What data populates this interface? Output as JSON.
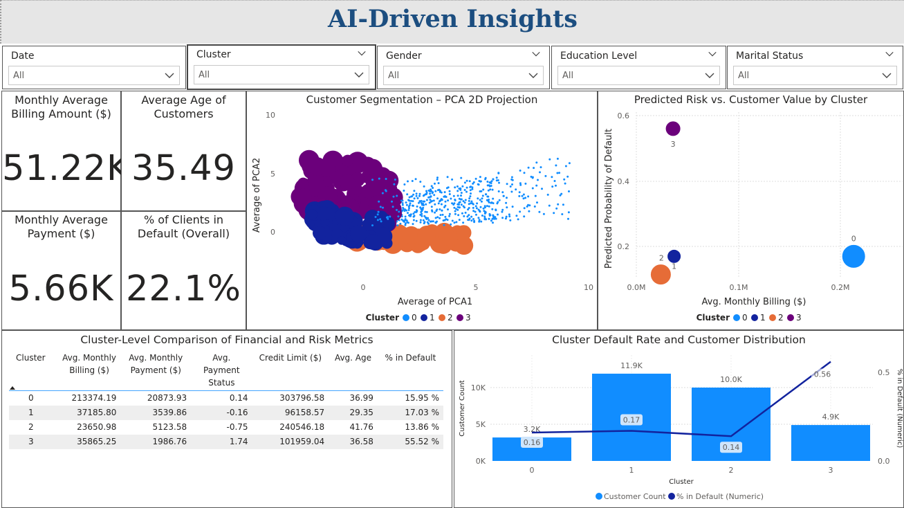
{
  "header": {
    "title": "AI-Driven Insights"
  },
  "slicers": [
    {
      "label": "Date",
      "value": "All"
    },
    {
      "label": "Cluster",
      "value": "All"
    },
    {
      "label": "Gender",
      "value": "All"
    },
    {
      "label": "Education Level",
      "value": "All"
    },
    {
      "label": "Marital Status",
      "value": "All"
    }
  ],
  "kpis": {
    "billing": {
      "label": "Monthly Average Billing Amount ($)",
      "value": "51.22K"
    },
    "age": {
      "label": "Average Age of Customers",
      "value": "35.49"
    },
    "payment": {
      "label": "Monthly Average Payment ($)",
      "value": "5.66K"
    },
    "default": {
      "label": "% of Clients in Default (Overall)",
      "value": "22.1%"
    }
  },
  "legend": {
    "title": "Cluster",
    "items": [
      "0",
      "1",
      "2",
      "3"
    ]
  },
  "colors": {
    "c0": "#118dff",
    "c1": "#12239e",
    "c2": "#e66c37",
    "c3": "#6b007b",
    "accent": "#41a4ff",
    "title": "#1c4e80"
  },
  "chart_data": [
    {
      "type": "scatter",
      "title": "Customer Segmentation – PCA 2D Projection",
      "xlabel": "Average of PCA1",
      "ylabel": "Average of PCA2",
      "xticks": [
        "0",
        "5",
        "10"
      ],
      "yticks": [
        "10",
        "5",
        "0"
      ],
      "xlim": [
        -3,
        10
      ],
      "ylim": [
        -1.5,
        10
      ],
      "series": [
        {
          "name": "0",
          "center": [
            3.5,
            2.2
          ]
        },
        {
          "name": "1",
          "center": [
            0.2,
            0.3
          ]
        },
        {
          "name": "2",
          "center": [
            2.2,
            -0.5
          ]
        },
        {
          "name": "3",
          "center": [
            -0.6,
            2.8
          ]
        }
      ]
    },
    {
      "type": "scatter",
      "title": "Predicted Risk vs. Customer Value by Cluster",
      "xlabel": "Avg. Monthly Billing ($)",
      "ylabel": "Predicted Probability of Default",
      "xticks": [
        "0.0M",
        "0.1M",
        "0.2M"
      ],
      "yticks": [
        "0.6",
        "0.4",
        "0.2"
      ],
      "xlim": [
        0,
        0.3
      ],
      "ylim": [
        0.1,
        0.6
      ],
      "series": [
        {
          "name": "0",
          "x": 0.213,
          "y": 0.17
        },
        {
          "name": "1",
          "x": 0.037,
          "y": 0.17
        },
        {
          "name": "2",
          "x": 0.024,
          "y": 0.14
        },
        {
          "name": "3",
          "x": 0.036,
          "y": 0.56
        }
      ]
    },
    {
      "type": "table",
      "title": "Cluster-Level Comparison of Financial and Risk Metrics",
      "columns": [
        "Cluster",
        "Avg. Monthly Billing ($)",
        "Avg. Monthly Payment ($)",
        "Avg. Payment Status",
        "Credit Limit ($)",
        "Avg. Age",
        "% in Default"
      ],
      "rows": [
        [
          "0",
          "213374.19",
          "20873.93",
          "0.14",
          "303796.58",
          "36.99",
          "15.95 %"
        ],
        [
          "1",
          "37185.80",
          "3539.86",
          "-0.16",
          "96158.57",
          "29.35",
          "17.03 %"
        ],
        [
          "2",
          "23650.98",
          "5123.58",
          "-0.75",
          "240546.18",
          "41.76",
          "13.86 %"
        ],
        [
          "3",
          "35865.25",
          "1986.76",
          "1.74",
          "101959.04",
          "36.58",
          "55.52 %"
        ]
      ]
    },
    {
      "type": "bar",
      "title": "Cluster Default Rate and Customer Distribution",
      "xlabel": "Cluster",
      "ylabel": "Customer Count",
      "y2label": "% in Default (Numeric)",
      "categories": [
        "0",
        "1",
        "2",
        "3"
      ],
      "yticks": [
        "10K",
        "5K",
        "0K"
      ],
      "y2ticks": [
        "0.5",
        "0.0"
      ],
      "ylim": [
        0,
        13000
      ],
      "y2lim": [
        0,
        0.6
      ],
      "series": [
        {
          "name": "Customer Count",
          "values": [
            3200,
            11900,
            10000,
            4900
          ],
          "labels": [
            "3.2K",
            "11.9K",
            "10.0K",
            "4.9K"
          ]
        },
        {
          "name": "% in Default (Numeric)",
          "values": [
            0.16,
            0.17,
            0.14,
            0.56
          ],
          "labels": [
            "0.16",
            "0.17",
            "0.14",
            "0.56"
          ]
        }
      ]
    }
  ]
}
